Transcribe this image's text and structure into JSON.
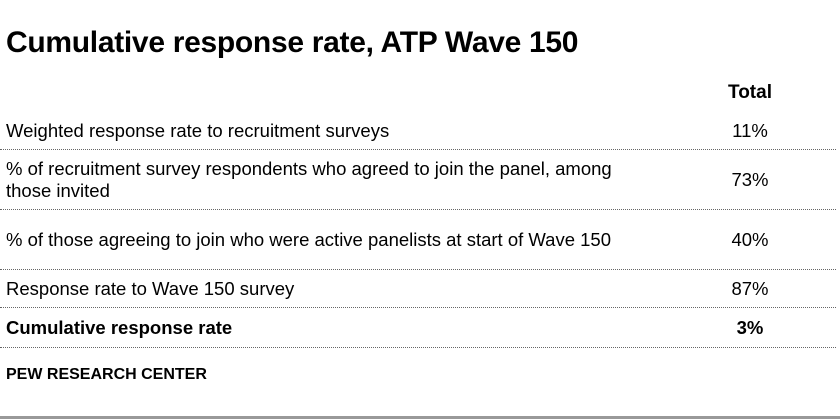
{
  "title": "Cumulative response rate, ATP Wave 150",
  "column_header": "Total",
  "rows": [
    {
      "label": "Weighted response rate to recruitment surveys",
      "value": "11%"
    },
    {
      "label": "% of recruitment survey respondents who agreed to join the panel, among those invited",
      "value": "73%"
    },
    {
      "label": "% of those agreeing to join who were active panelists at start of Wave 150",
      "value": "40%"
    },
    {
      "label": "Response rate to Wave 150 survey",
      "value": "87%"
    },
    {
      "label": "Cumulative response rate",
      "value": "3%"
    }
  ],
  "footer": "PEW RESEARCH CENTER"
}
